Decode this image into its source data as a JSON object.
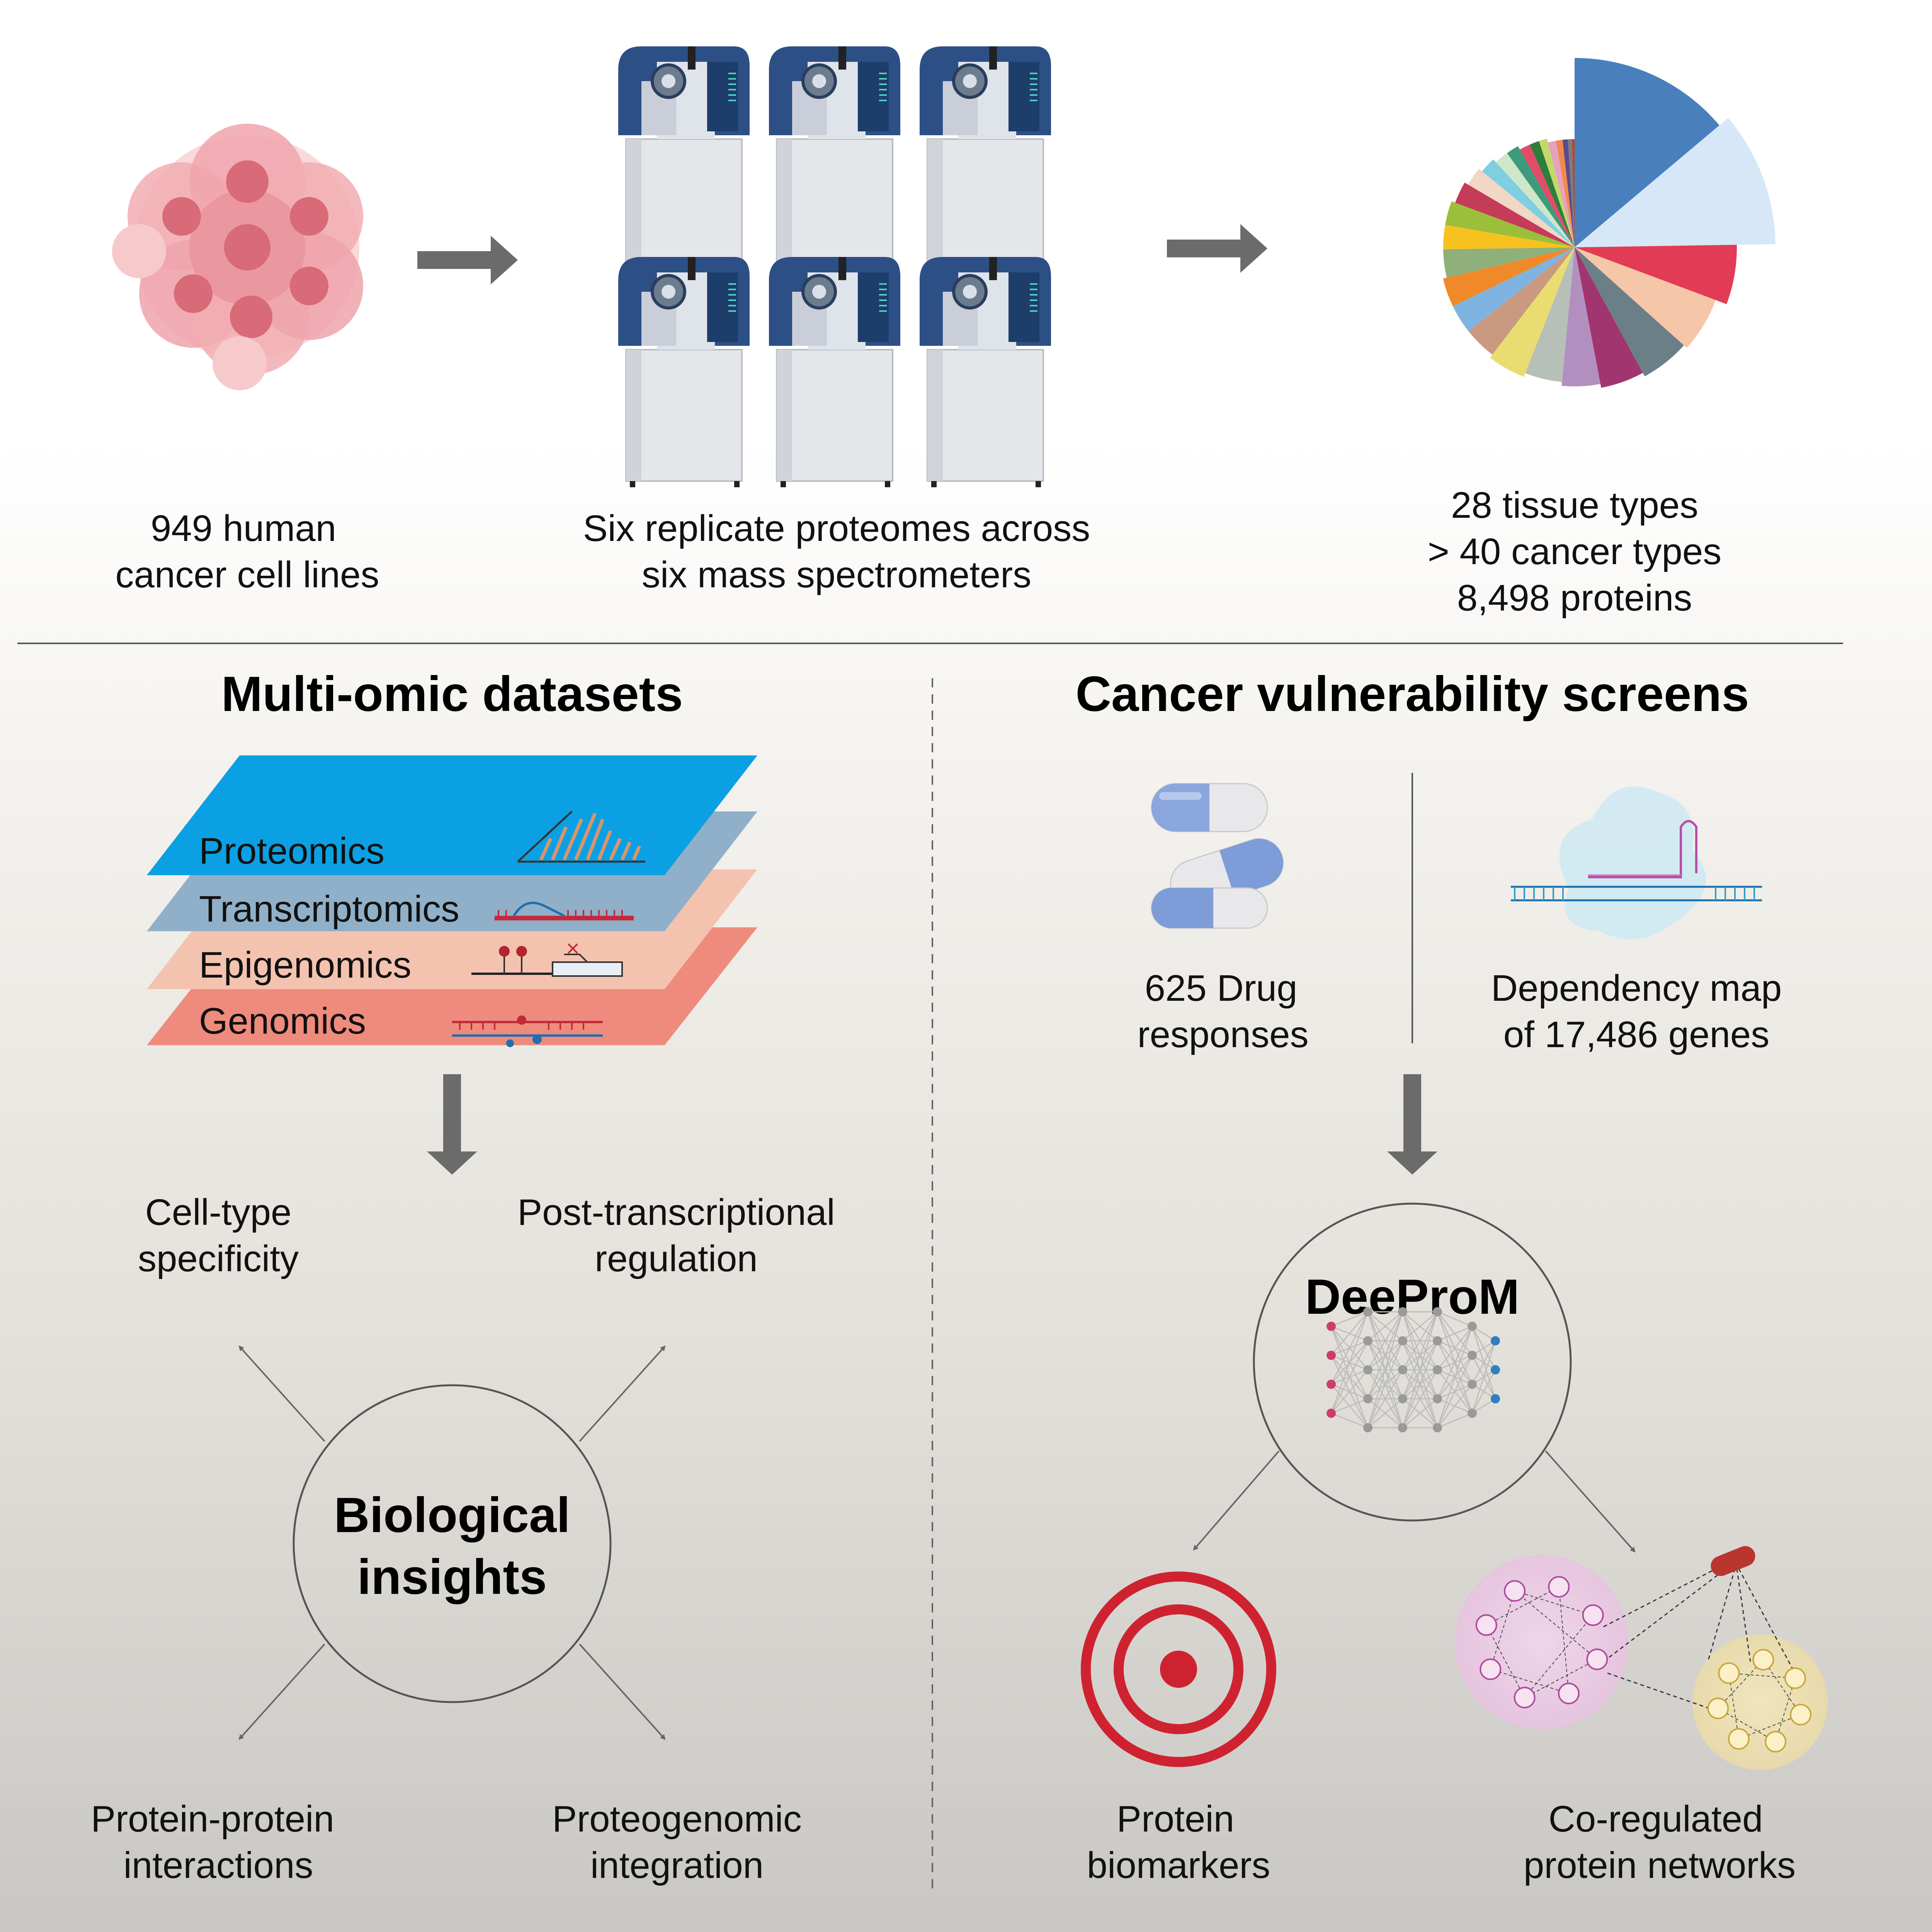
{
  "top": {
    "cells_label": [
      "949 human",
      "cancer cell lines"
    ],
    "ms_label": [
      "Six replicate proteomes across",
      "six mass spectrometers"
    ],
    "pie_label": [
      "28 tissue types",
      "> 40 cancer types",
      "8,498 proteins"
    ]
  },
  "left": {
    "title": "Multi-omic datasets",
    "layers": [
      "Proteomics",
      "Transcriptomics",
      "Epigenomics",
      "Genomics"
    ],
    "insights_title": [
      "Biological",
      "insights"
    ],
    "outputs": {
      "top_left": [
        "Cell-type",
        "specificity"
      ],
      "top_right": [
        "Post-transcriptional",
        "regulation"
      ],
      "bottom_left": [
        "Protein-protein",
        "interactions"
      ],
      "bottom_right": [
        "Proteogenomic",
        "integration"
      ]
    }
  },
  "right": {
    "title": "Cancer vulnerability screens",
    "drug_label": [
      "625 Drug",
      "responses"
    ],
    "dep_label": [
      "Dependency map",
      "of 17,486 genes"
    ],
    "model_name": "DeeProM",
    "outputs": {
      "left": [
        "Protein",
        "biomarkers"
      ],
      "right": [
        "Co-regulated",
        "protein networks"
      ]
    }
  },
  "colors": {
    "proteomics": "#0ba0e3",
    "transcriptomics": "#8fb0c8",
    "epigenomics": "#f4c3b0",
    "genomics": "#ef8b7d",
    "arrow": "#666666",
    "target": "#cf2230",
    "ms_blue": "#2c4f86"
  },
  "pie_colors": [
    "#4a7fbe",
    "#d6e8f7",
    "#e23b55",
    "#f6c6a8",
    "#6b7f86",
    "#a0356f",
    "#b38fc0",
    "#b6c0b8",
    "#e9dd72",
    "#c99a7f",
    "#7fb4e2",
    "#f0892a",
    "#8fb07a",
    "#f7c21f",
    "#9bbf3a",
    "#c43c57",
    "#f2d6c6",
    "#7fcfe0",
    "#cfe7c9",
    "#3d9a7a",
    "#e04c6a",
    "#2f7d3b",
    "#c3d86a",
    "#e6a0c0",
    "#f08a4b",
    "#5c4a8c",
    "#7d7d7d",
    "#b04a2f"
  ]
}
